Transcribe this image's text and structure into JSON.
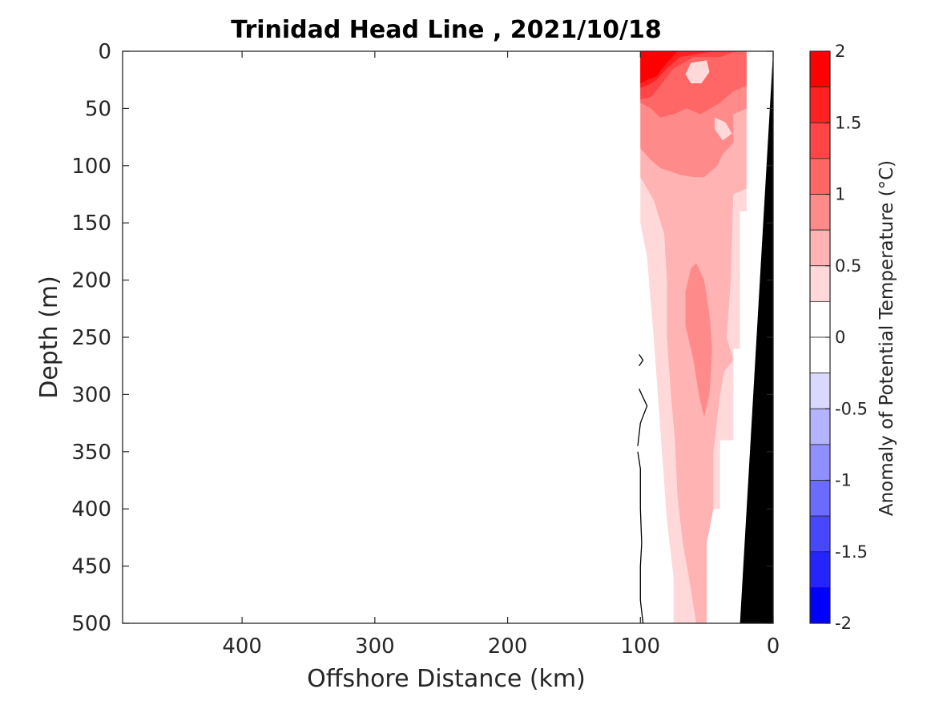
{
  "chart_data": {
    "type": "heatmap",
    "title": "Trinidad Head Line , 2021/10/18",
    "xlabel": "Offshore Distance (km)",
    "ylabel": "Depth (m)",
    "xlim": [
      490,
      0
    ],
    "ylim": [
      0,
      500
    ],
    "x_ticks": [
      400,
      300,
      200,
      100,
      0
    ],
    "x_tick_labels": [
      "400",
      "300",
      "200",
      "100",
      "0"
    ],
    "y_ticks": [
      0,
      50,
      100,
      150,
      200,
      250,
      300,
      350,
      400,
      450,
      500
    ],
    "y_tick_labels": [
      "0",
      "50",
      "100",
      "150",
      "200",
      "250",
      "300",
      "350",
      "400",
      "450",
      "500"
    ],
    "y_reversed": true,
    "colorbar": {
      "label": "Anomaly of Potential Temperature (°C)",
      "range": [
        -2,
        2
      ],
      "ticks": [
        2,
        1.5,
        1,
        0.5,
        0,
        -0.5,
        -1,
        -1.5,
        -2
      ],
      "tick_labels": [
        "2",
        "1.5",
        "1",
        "0.5",
        "0",
        "-0.5",
        "-1",
        "-1.5",
        "-2"
      ],
      "levels": [
        {
          "min": 1.75,
          "max": 2.0,
          "color": "#ff0000"
        },
        {
          "min": 1.5,
          "max": 1.75,
          "color": "#ff2121"
        },
        {
          "min": 1.25,
          "max": 1.5,
          "color": "#ff4545"
        },
        {
          "min": 1.0,
          "max": 1.25,
          "color": "#ff6666"
        },
        {
          "min": 0.75,
          "max": 1.0,
          "color": "#ff8a8a"
        },
        {
          "min": 0.5,
          "max": 0.75,
          "color": "#ffb3b3"
        },
        {
          "min": 0.25,
          "max": 0.5,
          "color": "#ffd9d9"
        },
        {
          "min": 0.0,
          "max": 0.25,
          "color": "#ffffff"
        },
        {
          "min": -0.25,
          "max": 0.0,
          "color": "#ffffff"
        },
        {
          "min": -0.5,
          "max": -0.25,
          "color": "#d9d9ff"
        },
        {
          "min": -0.75,
          "max": -0.5,
          "color": "#b3b3ff"
        },
        {
          "min": -1.0,
          "max": -0.75,
          "color": "#8f8fff"
        },
        {
          "min": -1.25,
          "max": -1.0,
          "color": "#6b6bff"
        },
        {
          "min": -1.5,
          "max": -1.25,
          "color": "#4747ff"
        },
        {
          "min": -1.75,
          "max": -1.5,
          "color": "#2424ff"
        },
        {
          "min": -2.0,
          "max": -1.75,
          "color": "#0000ff"
        }
      ]
    },
    "regions": [
      {
        "name": "anom-0.25-0.5",
        "level": 0.25,
        "color": "#ffd9d9",
        "points": [
          [
            100,
            0
          ],
          [
            20,
            0
          ],
          [
            20,
            140
          ],
          [
            25,
            140
          ],
          [
            25,
            260
          ],
          [
            30,
            260
          ],
          [
            30,
            340
          ],
          [
            40,
            340
          ],
          [
            40,
            400
          ],
          [
            50,
            400
          ],
          [
            50,
            500
          ],
          [
            75,
            500
          ],
          [
            75,
            460
          ],
          [
            80,
            410
          ],
          [
            85,
            330
          ],
          [
            90,
            250
          ],
          [
            95,
            180
          ],
          [
            100,
            150
          ]
        ]
      },
      {
        "name": "anom-0.5-0.75",
        "level": 0.5,
        "color": "#ffb3b3",
        "points": [
          [
            100,
            0
          ],
          [
            20,
            0
          ],
          [
            20,
            120
          ],
          [
            30,
            125
          ],
          [
            32,
            200
          ],
          [
            35,
            250
          ],
          [
            30,
            270
          ],
          [
            37,
            280
          ],
          [
            40,
            300
          ],
          [
            45,
            350
          ],
          [
            45,
            400
          ],
          [
            50,
            430
          ],
          [
            50,
            500
          ],
          [
            58,
            500
          ],
          [
            62,
            470
          ],
          [
            68,
            430
          ],
          [
            72,
            390
          ],
          [
            74,
            340
          ],
          [
            77,
            300
          ],
          [
            80,
            250
          ],
          [
            80,
            200
          ],
          [
            82,
            160
          ],
          [
            90,
            130
          ],
          [
            100,
            110
          ]
        ]
      },
      {
        "name": "anom-0.75-1.0",
        "level": 0.75,
        "color": "#ff8a8a",
        "points": [
          [
            100,
            0
          ],
          [
            20,
            0
          ],
          [
            20,
            50
          ],
          [
            30,
            55
          ],
          [
            30,
            80
          ],
          [
            38,
            90
          ],
          [
            42,
            100
          ],
          [
            52,
            110
          ],
          [
            60,
            110
          ],
          [
            70,
            108
          ],
          [
            85,
            102
          ],
          [
            92,
            95
          ],
          [
            100,
            85
          ]
        ]
      },
      {
        "name": "anom-0.75-1.0-core",
        "level": 0.75,
        "color": "#ff8a8a",
        "points": [
          [
            58,
            185
          ],
          [
            52,
            200
          ],
          [
            48,
            230
          ],
          [
            46,
            260
          ],
          [
            48,
            300
          ],
          [
            52,
            320
          ],
          [
            56,
            300
          ],
          [
            60,
            270
          ],
          [
            66,
            240
          ],
          [
            66,
            210
          ],
          [
            62,
            190
          ]
        ]
      },
      {
        "name": "anom-1.0-1.25",
        "level": 1.0,
        "color": "#ff6666",
        "points": [
          [
            100,
            0
          ],
          [
            20,
            0
          ],
          [
            20,
            30
          ],
          [
            30,
            35
          ],
          [
            40,
            45
          ],
          [
            55,
            55
          ],
          [
            65,
            50
          ],
          [
            75,
            55
          ],
          [
            85,
            58
          ],
          [
            92,
            50
          ],
          [
            100,
            45
          ]
        ]
      },
      {
        "name": "anom-1.25-1.5",
        "level": 1.25,
        "color": "#ff4545",
        "points": [
          [
            100,
            0
          ],
          [
            28,
            0
          ],
          [
            40,
            5
          ],
          [
            60,
            5
          ],
          [
            75,
            15
          ],
          [
            85,
            30
          ],
          [
            92,
            40
          ],
          [
            100,
            42
          ]
        ]
      },
      {
        "name": "anom-1.5-1.75",
        "level": 1.5,
        "color": "#ff2121",
        "points": [
          [
            100,
            0
          ],
          [
            45,
            0
          ],
          [
            70,
            5
          ],
          [
            80,
            15
          ],
          [
            88,
            25
          ],
          [
            95,
            30
          ],
          [
            100,
            32
          ]
        ]
      },
      {
        "name": "anom-1.75-2.0",
        "level": 1.75,
        "color": "#ff0000",
        "points": [
          [
            100,
            0
          ],
          [
            72,
            0
          ],
          [
            80,
            10
          ],
          [
            88,
            22
          ],
          [
            95,
            25
          ],
          [
            100,
            28
          ]
        ]
      },
      {
        "name": "anom-0.25-0.5-patch-top",
        "level": 0.25,
        "color": "#ffd9d9",
        "points": [
          [
            62,
            10
          ],
          [
            50,
            8
          ],
          [
            48,
            18
          ],
          [
            54,
            28
          ],
          [
            62,
            28
          ],
          [
            66,
            20
          ]
        ]
      },
      {
        "name": "anom-0.25-0.5-patch-mid",
        "level": 0.25,
        "color": "#ffd9d9",
        "points": [
          [
            44,
            58
          ],
          [
            36,
            62
          ],
          [
            31,
            72
          ],
          [
            38,
            78
          ],
          [
            44,
            68
          ]
        ]
      },
      {
        "name": "land-shelf-white",
        "level": 0.0,
        "color": "#ffffff",
        "points": [
          [
            20,
            0
          ],
          [
            20,
            500
          ],
          [
            0,
            500
          ],
          [
            0,
            0
          ]
        ]
      },
      {
        "name": "seafloor",
        "level": null,
        "color": "#000000",
        "points": [
          [
            0,
            0
          ],
          [
            25,
            500
          ],
          [
            0,
            500
          ]
        ]
      }
    ],
    "zero_contours": [
      {
        "points": [
          [
            101,
            265
          ],
          [
            98,
            270
          ],
          [
            101,
            275
          ]
        ]
      },
      {
        "points": [
          [
            101,
            295
          ],
          [
            95,
            310
          ],
          [
            100,
            325
          ],
          [
            102,
            345
          ]
        ]
      },
      {
        "points": [
          [
            102,
            350
          ],
          [
            100,
            365
          ],
          [
            100,
            400
          ],
          [
            99,
            430
          ],
          [
            100,
            450
          ],
          [
            100,
            480
          ],
          [
            98,
            500
          ]
        ]
      }
    ],
    "seafloor_edge": {
      "points": [
        [
          0,
          0
        ],
        [
          9,
          85
        ],
        [
          13,
          150
        ],
        [
          18,
          260
        ],
        [
          21,
          330
        ],
        [
          25,
          500
        ]
      ]
    }
  }
}
